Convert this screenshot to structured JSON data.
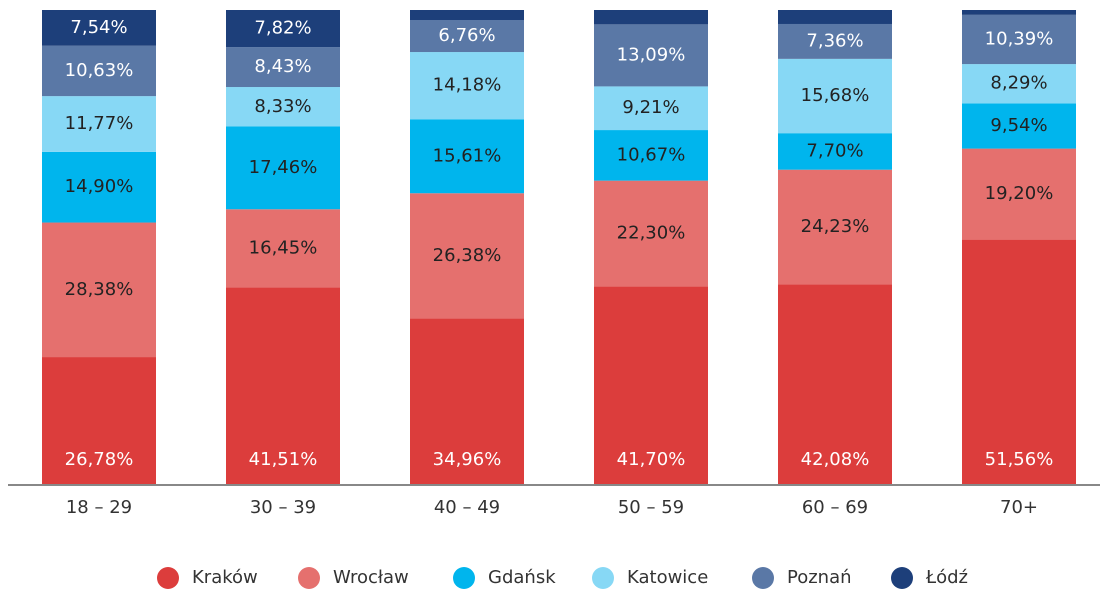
{
  "chart_data": {
    "type": "stacked_bar",
    "categories": [
      "18 – 29",
      "30 – 39",
      "40 – 49",
      "50 – 59",
      "60 – 69",
      "70+"
    ],
    "ylim": [
      0,
      100
    ],
    "series": [
      {
        "name": "Kraków",
        "color": "#dc3d3c",
        "label_color": "#ffffff",
        "values": [
          26.78,
          41.51,
          34.96,
          41.7,
          42.08,
          51.56
        ],
        "value_labels": [
          "26,78%",
          "41,51%",
          "34,96%",
          "41,70%",
          "42,08%",
          "51,56%"
        ]
      },
      {
        "name": "Wrocław",
        "color": "#e5706e",
        "label_color": "#222222",
        "values": [
          28.38,
          16.45,
          26.38,
          22.3,
          24.23,
          19.2
        ],
        "value_labels": [
          "28,38%",
          "16,45%",
          "26,38%",
          "22,30%",
          "24,23%",
          "19,20%"
        ]
      },
      {
        "name": "Gdańsk",
        "color": "#00b5ed",
        "label_color": "#222222",
        "values": [
          14.9,
          17.46,
          15.61,
          10.67,
          7.7,
          9.54
        ],
        "value_labels": [
          "14,90%",
          "17,46%",
          "15,61%",
          "10,67%",
          "7,70%",
          "9,54%"
        ]
      },
      {
        "name": "Katowice",
        "color": "#87d8f5",
        "label_color": "#222222",
        "values": [
          11.77,
          8.33,
          14.18,
          9.21,
          15.68,
          8.29
        ],
        "value_labels": [
          "11,77%",
          "8,33%",
          "14,18%",
          "9,21%",
          "15,68%",
          "8,29%"
        ]
      },
      {
        "name": "Poznań",
        "color": "#5a78a6",
        "label_color": "#ffffff",
        "values": [
          10.63,
          8.43,
          6.76,
          13.09,
          7.36,
          10.39
        ],
        "value_labels": [
          "10,63%",
          "8,43%",
          "6,76%",
          "13,09%",
          "7,36%",
          "10,39%"
        ]
      },
      {
        "name": "Łódź",
        "color": "#1d3f7a",
        "label_color": "#ffffff",
        "values": [
          7.54,
          7.82,
          2.11,
          3.03,
          2.95,
          1.02
        ],
        "value_labels": [
          "7,54%",
          "7,82%",
          null,
          null,
          null,
          null
        ]
      }
    ]
  }
}
